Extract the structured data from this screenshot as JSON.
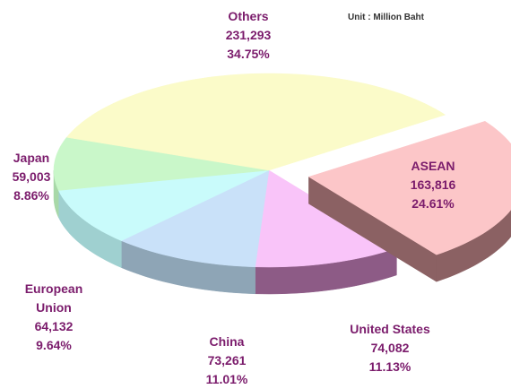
{
  "chart_data": {
    "type": "pie3d",
    "subtitle": "Unit : Million Baht",
    "categories": [
      "ASEAN",
      "United States",
      "China",
      "European Union",
      "Japan",
      "Others"
    ],
    "values": [
      163816,
      74082,
      73261,
      64132,
      59003,
      231293
    ],
    "value_labels": [
      "163,816",
      "74,082",
      "73,261",
      "64,132",
      "59,003",
      "231,293"
    ],
    "percentages": [
      24.61,
      11.13,
      11.01,
      9.64,
      8.86,
      34.75
    ],
    "percentage_labels": [
      "24.61%",
      "11.13%",
      "11.01%",
      "9.64%",
      "8.86%",
      "34.75%"
    ],
    "colors": [
      "#fcc6c8",
      "#f9c4f9",
      "#c9e1f9",
      "#c9fbfb",
      "#c9f7c9",
      "#fbfbc9"
    ],
    "side_colors": [
      "#8b6163",
      "#8d5b86",
      "#8ea5b6",
      "#9fd0d0",
      "#a8d8a8",
      "#d8d8a8"
    ],
    "exploded": [
      true,
      false,
      false,
      false,
      false,
      false
    ]
  }
}
